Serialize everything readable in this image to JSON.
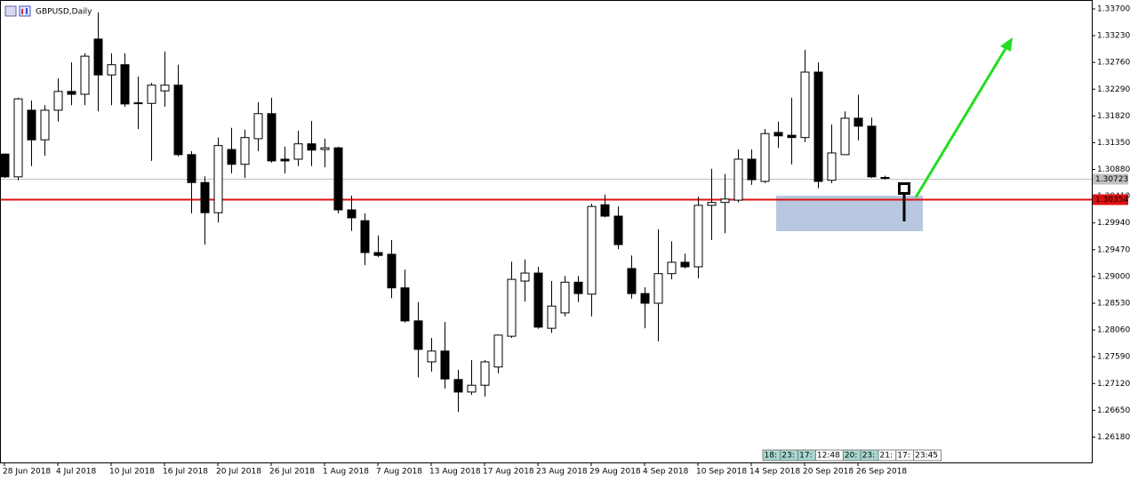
{
  "chart_data": {
    "type": "candlestick",
    "title": "GBPUSD,Daily",
    "categories": [
      "28 Jun 2018",
      null,
      null,
      null,
      "4 Jul 2018",
      null,
      null,
      null,
      "10 Jul 2018",
      null,
      null,
      null,
      "16 Jul 2018",
      null,
      null,
      null,
      "20 Jul 2018",
      null,
      null,
      null,
      "26 Jul 2018",
      null,
      null,
      null,
      "1 Aug 2018",
      null,
      null,
      null,
      "7 Aug 2018",
      null,
      null,
      null,
      "13 Aug 2018",
      null,
      null,
      null,
      "17 Aug 2018",
      null,
      null,
      null,
      "23 Aug 2018",
      null,
      null,
      null,
      "29 Aug 2018",
      null,
      null,
      null,
      "4 Sep 2018",
      null,
      null,
      null,
      "10 Sep 2018",
      null,
      null,
      null,
      "14 Sep 2018",
      null,
      null,
      null,
      "20 Sep 2018",
      null,
      null,
      null,
      "26 Sep 2018",
      null,
      null
    ],
    "open": [
      1.3115,
      1.3075,
      1.3192,
      1.314,
      1.3192,
      1.3225,
      1.322,
      1.3317,
      1.3254,
      1.3272,
      1.3204,
      1.3204,
      1.3226,
      1.3236,
      1.3114,
      1.3065,
      1.3012,
      1.3123,
      1.3097,
      1.3142,
      1.3186,
      1.3106,
      1.3106,
      1.3133,
      1.3123,
      1.3126,
      1.3017,
      1.2998,
      1.2942,
      1.2939,
      1.288,
      1.2822,
      1.275,
      1.2769,
      1.2719,
      1.2697,
      1.2709,
      1.2741,
      1.2795,
      1.2892,
      1.2906,
      1.2809,
      1.2836,
      1.289,
      1.2869,
      1.3026,
      1.3006,
      1.2914,
      1.287,
      1.2853,
      1.2905,
      1.2925,
      1.2917,
      1.3025,
      1.303,
      1.3034,
      1.3106,
      1.3067,
      1.3153,
      1.3148,
      1.3144,
      1.3259,
      1.3069,
      1.3114,
      1.3178,
      1.3164,
      1.3074
    ],
    "high": [
      1.3116,
      1.3214,
      1.3209,
      1.3201,
      1.3248,
      1.3276,
      1.3292,
      1.3364,
      1.3292,
      1.3292,
      1.3251,
      1.324,
      1.3295,
      1.3272,
      1.312,
      1.3076,
      1.3144,
      1.3161,
      1.3158,
      1.3206,
      1.3214,
      1.3128,
      1.3156,
      1.3173,
      1.3142,
      1.3128,
      1.3042,
      1.3011,
      1.2972,
      1.2964,
      1.2912,
      1.2855,
      1.2792,
      1.282,
      1.2736,
      1.2753,
      1.2753,
      1.2798,
      1.2926,
      1.293,
      1.2917,
      1.2892,
      1.2901,
      1.2901,
      1.3028,
      1.3044,
      1.3023,
      1.2937,
      1.2881,
      1.2983,
      1.2962,
      1.294,
      1.304,
      1.3089,
      1.308,
      1.3123,
      1.3123,
      1.3159,
      1.3172,
      1.3214,
      1.3298,
      1.3276,
      1.3167,
      1.319,
      1.3219,
      1.3179,
      1.3077
    ],
    "low": [
      1.3073,
      1.3069,
      1.3094,
      1.3112,
      1.3172,
      1.3201,
      1.3201,
      1.319,
      1.3201,
      1.3198,
      1.3159,
      1.3103,
      1.3198,
      1.3111,
      1.3011,
      1.2956,
      1.2995,
      1.3081,
      1.3073,
      1.312,
      1.31,
      1.3081,
      1.3094,
      1.3094,
      1.3092,
      1.3011,
      1.298,
      1.292,
      1.2934,
      1.2862,
      1.2819,
      1.2723,
      1.2733,
      1.2703,
      1.2662,
      1.2692,
      1.2689,
      1.273,
      1.2792,
      1.2856,
      1.2808,
      1.2801,
      1.283,
      1.2855,
      1.283,
      1.3004,
      1.2948,
      1.2861,
      1.2809,
      1.2786,
      1.2895,
      1.2914,
      1.2897,
      1.2964,
      1.2976,
      1.303,
      1.3061,
      1.3064,
      1.3126,
      1.3097,
      1.3136,
      1.3055,
      1.3064,
      1.3114,
      1.3139,
      1.3073,
      1.307
    ],
    "close": [
      1.3075,
      1.3212,
      1.314,
      1.3192,
      1.3225,
      1.322,
      1.3287,
      1.3254,
      1.3272,
      1.3203,
      1.3205,
      1.3236,
      1.3236,
      1.3114,
      1.3065,
      1.3012,
      1.313,
      1.3097,
      1.3144,
      1.3186,
      1.3103,
      1.3103,
      1.3133,
      1.3122,
      1.3126,
      1.3017,
      1.3003,
      1.2942,
      1.2937,
      1.288,
      1.2822,
      1.2772,
      1.2769,
      1.272,
      1.2697,
      1.2709,
      1.275,
      1.2797,
      1.2895,
      1.2906,
      1.2811,
      1.2848,
      1.289,
      1.287,
      1.3023,
      1.3006,
      1.2956,
      1.287,
      1.2853,
      1.2905,
      1.2925,
      1.2917,
      1.3025,
      1.303,
      1.3036,
      1.3106,
      1.307,
      1.3151,
      1.3147,
      1.3144,
      1.3259,
      1.3067,
      1.3117,
      1.3178,
      1.3164,
      1.3075,
      1.30723
    ],
    "up_color": "#ffffff",
    "down_color": "#000000",
    "ylim": [
      1.25734,
      1.33856
    ],
    "yticks": [
      {
        "value": 1.337,
        "label": "1.33700"
      },
      {
        "value": 1.3323,
        "label": "1.33230"
      },
      {
        "value": 1.3276,
        "label": "1.32760"
      },
      {
        "value": 1.3229,
        "label": "1.32290"
      },
      {
        "value": 1.3182,
        "label": "1.31820"
      },
      {
        "value": 1.3135,
        "label": "1.31350"
      },
      {
        "value": 1.3088,
        "label": "1.30880"
      },
      {
        "value": 1.3041,
        "label": "1.30410"
      },
      {
        "value": 1.2994,
        "label": "1.29940"
      },
      {
        "value": 1.2947,
        "label": "1.29470"
      },
      {
        "value": 1.29,
        "label": "1.29000"
      },
      {
        "value": 1.2853,
        "label": "1.28530"
      },
      {
        "value": 1.2806,
        "label": "1.28060"
      },
      {
        "value": 1.2759,
        "label": "1.27590"
      },
      {
        "value": 1.2712,
        "label": "1.27120"
      },
      {
        "value": 1.2665,
        "label": "1.26650"
      },
      {
        "value": 1.2618,
        "label": "1.26180"
      }
    ],
    "price_lines": [
      {
        "value": 1.30723,
        "color": "#c0c0c0"
      },
      {
        "value": 1.30354,
        "color": "#e01010"
      }
    ],
    "time_markers": [
      "18:",
      "23:",
      "17:",
      "12:48",
      "20:",
      "23:",
      "21:",
      "17:",
      "23:45"
    ]
  }
}
